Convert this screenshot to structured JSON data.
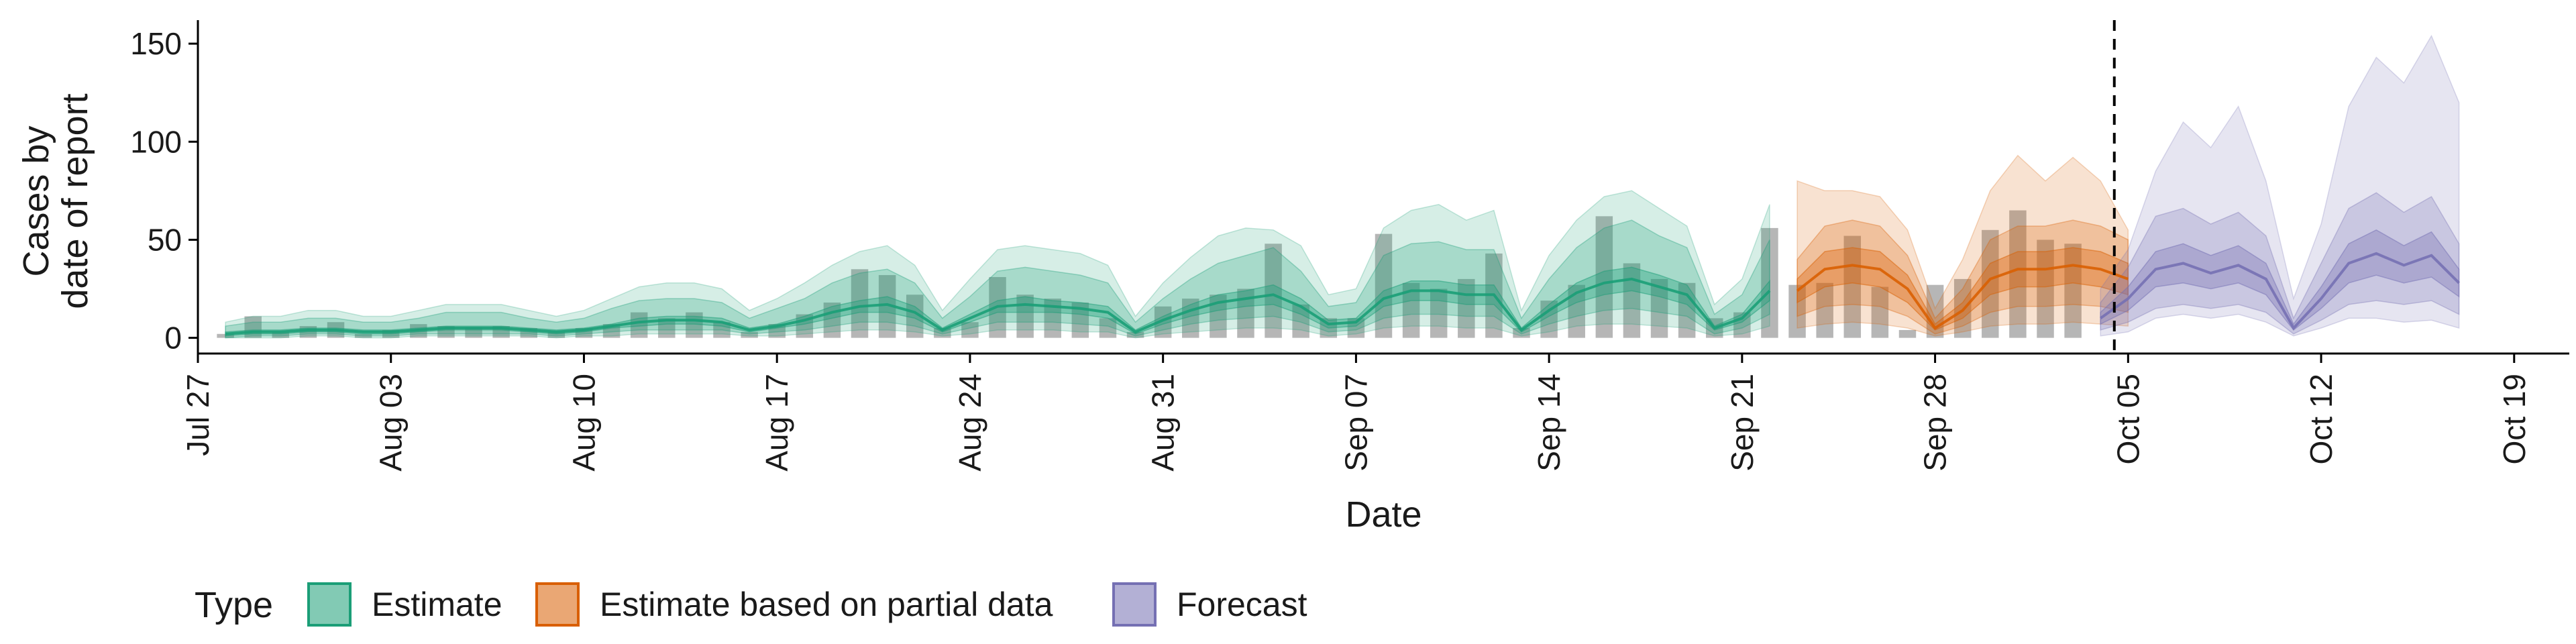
{
  "chart_data": {
    "type": "area",
    "xlabel": "Date",
    "ylabel": [
      "Cases by",
      "date of report"
    ],
    "ylim": [
      -8,
      162
    ],
    "yticks": [
      0,
      50,
      100,
      150
    ],
    "x_start": "2020-07-27",
    "x_end": "2020-10-21",
    "xticks": [
      "Jul 27",
      "Aug 03",
      "Aug 10",
      "Aug 17",
      "Aug 24",
      "Aug 31",
      "Sep 07",
      "Sep 14",
      "Sep 21",
      "Sep 28",
      "Oct 05",
      "Oct 12",
      "Oct 19"
    ],
    "forecast_line_date": "2020-10-04",
    "legend": {
      "title": "Type",
      "placement": "bottom-left",
      "items": [
        {
          "label": "Estimate",
          "color": "#1b9e77"
        },
        {
          "label": "Estimate based on partial data",
          "color": "#d95f02"
        },
        {
          "label": "Forecast",
          "color": "#7570b3"
        }
      ]
    },
    "bar_color": "#a9a9a9",
    "bars": {
      "start": "2020-07-28",
      "values": [
        2,
        11,
        3,
        6,
        8,
        2,
        4,
        7,
        6,
        5,
        6,
        5,
        3,
        5,
        7,
        13,
        10,
        13,
        8,
        3,
        7,
        12,
        18,
        35,
        32,
        22,
        5,
        8,
        31,
        22,
        20,
        18,
        10,
        3,
        16,
        20,
        22,
        25,
        48,
        17,
        10,
        10,
        53,
        28,
        25,
        30,
        43,
        5,
        19,
        27,
        62,
        38,
        30,
        28,
        10,
        13,
        56,
        27,
        28,
        52,
        26,
        4,
        27,
        30,
        55,
        65,
        50,
        48
      ]
    },
    "estimate": {
      "start": "2020-07-28",
      "median": [
        2,
        3,
        3,
        4,
        4,
        3,
        3,
        4,
        5,
        5,
        5,
        4,
        3,
        4,
        6,
        8,
        9,
        9,
        8,
        4,
        6,
        9,
        13,
        16,
        17,
        13,
        4,
        10,
        16,
        17,
        16,
        15,
        13,
        3,
        9,
        14,
        18,
        20,
        22,
        16,
        7,
        8,
        20,
        24,
        24,
        22,
        22,
        4,
        14,
        23,
        28,
        30,
        26,
        22,
        5,
        10,
        24
      ],
      "low50": [
        1,
        2,
        2,
        3,
        3,
        2,
        2,
        3,
        4,
        4,
        4,
        3,
        2,
        3,
        5,
        6,
        7,
        7,
        6,
        3,
        5,
        7,
        10,
        13,
        13,
        10,
        3,
        8,
        13,
        13,
        13,
        12,
        10,
        2,
        7,
        11,
        14,
        16,
        17,
        12,
        5,
        6,
        16,
        19,
        19,
        17,
        17,
        3,
        11,
        18,
        22,
        24,
        21,
        17,
        4,
        8,
        19
      ],
      "high50": [
        3,
        4,
        4,
        5,
        5,
        4,
        4,
        5,
        6,
        6,
        6,
        5,
        4,
        5,
        7,
        10,
        11,
        11,
        10,
        5,
        7,
        11,
        16,
        19,
        21,
        16,
        5,
        12,
        19,
        21,
        19,
        18,
        16,
        4,
        11,
        17,
        22,
        24,
        27,
        20,
        9,
        10,
        24,
        29,
        29,
        27,
        27,
        5,
        17,
        28,
        34,
        36,
        32,
        27,
        6,
        12,
        29
      ],
      "low90": [
        0,
        1,
        1,
        2,
        2,
        1,
        1,
        2,
        2,
        2,
        2,
        2,
        1,
        2,
        3,
        4,
        4,
        4,
        4,
        2,
        3,
        4,
        6,
        8,
        8,
        6,
        2,
        5,
        8,
        8,
        8,
        7,
        6,
        1,
        4,
        7,
        9,
        10,
        11,
        8,
        3,
        4,
        10,
        12,
        12,
        11,
        11,
        2,
        7,
        11,
        14,
        15,
        13,
        11,
        2,
        5,
        12
      ],
      "high90": [
        6,
        8,
        8,
        10,
        10,
        8,
        8,
        10,
        13,
        13,
        13,
        10,
        8,
        10,
        15,
        19,
        20,
        20,
        18,
        10,
        15,
        20,
        28,
        33,
        35,
        28,
        10,
        21,
        34,
        36,
        34,
        32,
        28,
        8,
        20,
        30,
        38,
        42,
        46,
        34,
        16,
        18,
        42,
        48,
        49,
        45,
        45,
        10,
        30,
        46,
        56,
        60,
        52,
        46,
        12,
        22,
        50
      ],
      "low_outer": [
        0,
        0,
        0,
        1,
        1,
        0,
        0,
        1,
        1,
        1,
        1,
        1,
        0,
        1,
        1,
        2,
        2,
        2,
        2,
        1,
        1,
        2,
        3,
        4,
        4,
        3,
        1,
        2,
        4,
        4,
        4,
        3,
        3,
        0,
        2,
        3,
        4,
        5,
        5,
        4,
        1,
        2,
        5,
        6,
        6,
        5,
        5,
        1,
        3,
        6,
        7,
        7,
        6,
        5,
        1,
        2,
        6
      ],
      "high_outer": [
        8,
        11,
        11,
        14,
        14,
        11,
        11,
        14,
        17,
        17,
        17,
        14,
        11,
        14,
        20,
        26,
        28,
        28,
        25,
        14,
        20,
        28,
        37,
        44,
        47,
        37,
        14,
        30,
        45,
        47,
        45,
        43,
        37,
        11,
        28,
        41,
        52,
        56,
        55,
        47,
        22,
        25,
        56,
        65,
        68,
        60,
        65,
        14,
        42,
        60,
        72,
        75,
        66,
        57,
        17,
        30,
        68
      ]
    },
    "partial": {
      "start": "2020-09-23",
      "median": [
        24,
        35,
        37,
        35,
        25,
        5,
        14,
        30,
        35,
        35,
        37,
        35,
        30
      ],
      "low50": [
        18,
        26,
        28,
        26,
        18,
        4,
        10,
        22,
        26,
        26,
        28,
        26,
        22
      ],
      "high50": [
        30,
        44,
        46,
        44,
        32,
        7,
        18,
        38,
        44,
        44,
        46,
        44,
        38
      ],
      "low90": [
        11,
        16,
        17,
        16,
        11,
        2,
        6,
        13,
        16,
        16,
        17,
        16,
        13
      ],
      "high90": [
        40,
        57,
        60,
        57,
        42,
        10,
        25,
        50,
        57,
        57,
        60,
        57,
        50
      ],
      "low_outer": [
        5,
        7,
        8,
        7,
        5,
        1,
        3,
        6,
        7,
        7,
        8,
        7,
        6
      ],
      "high_outer": [
        80,
        75,
        75,
        72,
        55,
        15,
        40,
        75,
        93,
        80,
        92,
        80,
        55
      ]
    },
    "forecast": {
      "start": "2020-10-04",
      "median": [
        10,
        20,
        35,
        38,
        33,
        37,
        30,
        5,
        20,
        38,
        43,
        37,
        42,
        28
      ],
      "low50": [
        7,
        14,
        26,
        28,
        25,
        28,
        22,
        4,
        15,
        28,
        32,
        28,
        31,
        21
      ],
      "high50": [
        13,
        26,
        44,
        48,
        42,
        47,
        38,
        7,
        26,
        48,
        55,
        47,
        54,
        35
      ],
      "low90": [
        4,
        8,
        15,
        17,
        15,
        17,
        13,
        2,
        9,
        17,
        19,
        17,
        19,
        12
      ],
      "high90": [
        18,
        36,
        62,
        66,
        58,
        64,
        52,
        10,
        38,
        66,
        74,
        64,
        72,
        48
      ],
      "low_outer": [
        1,
        3,
        10,
        12,
        10,
        12,
        8,
        1,
        5,
        10,
        10,
        8,
        9,
        5
      ],
      "high_outer": [
        25,
        45,
        85,
        110,
        97,
        118,
        80,
        20,
        58,
        118,
        143,
        130,
        154,
        120
      ]
    }
  }
}
